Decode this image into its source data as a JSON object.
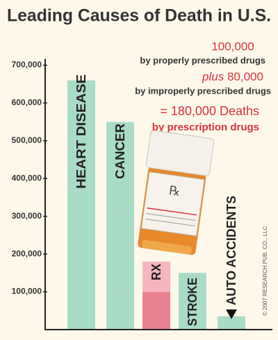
{
  "chart_data": {
    "type": "bar",
    "title": "Leading Causes of Death in U.S.",
    "categories": [
      "HEART DISEASE",
      "CANCER",
      "RX",
      "STROKE",
      "AUTO ACCIDENTS"
    ],
    "series": [
      {
        "values": [
          660000,
          550000,
          100000,
          150000,
          35000
        ],
        "colors": [
          "#a9dcc7",
          "#a9dcc7",
          "#e9808f",
          "#a9dcc7",
          "#a9dcc7"
        ]
      },
      {
        "values": [
          null,
          null,
          80000,
          null,
          null
        ],
        "color": "#f6b6bf"
      }
    ],
    "stacked": true,
    "ylim": [
      0,
      700000
    ],
    "yticks": [
      {
        "value": 100000,
        "label": "100,000"
      },
      {
        "value": 200000,
        "label": "200,000"
      },
      {
        "value": 300000,
        "label": "300,000"
      },
      {
        "value": 400000,
        "label": "400,000"
      },
      {
        "value": 500000,
        "label": "500,000"
      },
      {
        "value": 600000,
        "label": "600,000"
      },
      {
        "value": 700000,
        "label": "700,000"
      }
    ],
    "annotations": [
      "100,000",
      "by properly prescribed drugs",
      "plus",
      "80,000",
      "by improperly prescribed drugs",
      "= 180,000 Deaths",
      "by prescription drugs"
    ],
    "bottle_label": "℞",
    "copyright": "© 2007 RESEARCH PUB. CO., LLC"
  }
}
